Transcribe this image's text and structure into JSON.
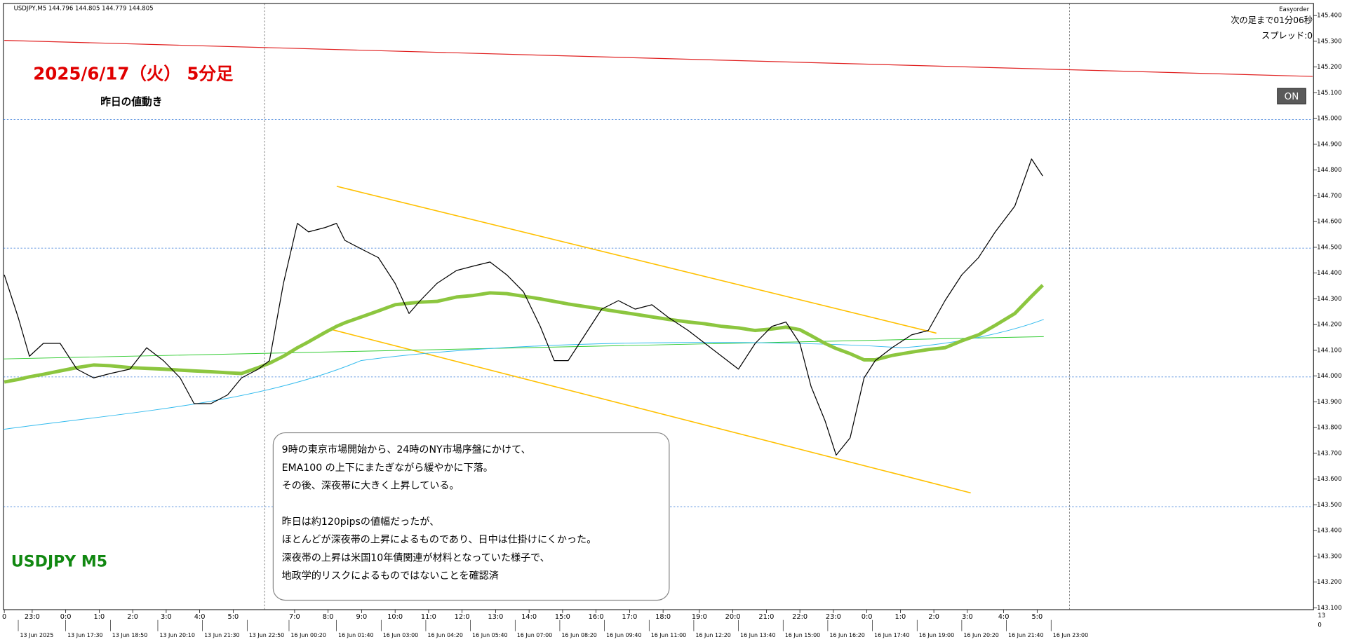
{
  "header": {
    "symbol_info": "USDJPY,M5  144.796 144.805 144.779 144.805",
    "tool_name": "Easyorder",
    "next_bar": "次の足まで01分06秒",
    "spread": "スプレッド:0",
    "toggle": "ON",
    "corner_top": "13",
    "corner_bottom": "0"
  },
  "chart_data": {
    "type": "line",
    "title": "2025/6/17（火） 5分足",
    "subtitle": "昨日の値動き",
    "symbol_label": "USDJPY M5",
    "annotation": [
      "9時の東京市場開始から、24時のNY市場序盤にかけて、",
      "EMA100 の上下にまたぎながら緩やかに下落。",
      "その後、深夜帯に大きく上昇している。",
      "昨日は約120pipsの値幅だったが、",
      "ほとんどが深夜帯の上昇によるものであり、日中は仕掛けにくかった。",
      "深夜帯の上昇は米国10年債関連が材料となっていた様子で、",
      "地政学的リスクによるものではないことを確認済"
    ],
    "x": [
      0,
      5,
      9,
      14,
      20,
      26,
      32,
      38,
      45,
      51,
      57,
      63,
      68,
      74,
      80,
      85,
      91,
      95,
      100,
      105,
      109,
      115,
      119,
      122,
      128,
      134,
      140,
      145,
      149,
      155,
      162,
      168,
      174,
      180,
      186,
      192,
      197,
      202,
      208,
      214,
      220,
      226,
      232,
      238,
      245,
      251,
      257,
      263,
      269,
      275,
      280,
      285,
      289,
      294,
      298,
      303,
      308,
      312,
      318,
      325,
      331,
      337,
      343,
      349,
      355,
      362,
      368,
      372
    ],
    "series": [
      {
        "name": "USDJPY",
        "color": "#000000",
        "width": 1,
        "values": [
          144.393,
          144.227,
          144.077,
          144.127,
          144.127,
          144.027,
          143.993,
          144.01,
          144.027,
          144.11,
          144.06,
          143.993,
          143.893,
          143.893,
          143.927,
          143.993,
          144.027,
          144.06,
          144.36,
          144.593,
          144.56,
          144.577,
          144.593,
          144.527,
          144.493,
          144.46,
          144.36,
          144.243,
          144.293,
          144.36,
          144.41,
          144.427,
          144.443,
          144.393,
          144.327,
          144.193,
          144.06,
          144.06,
          144.16,
          144.26,
          144.293,
          144.26,
          144.277,
          144.227,
          144.177,
          144.127,
          144.077,
          144.027,
          144.127,
          144.193,
          144.21,
          144.127,
          143.96,
          143.827,
          143.693,
          143.76,
          143.993,
          144.06,
          144.11,
          144.16,
          144.177,
          144.293,
          144.393,
          144.46,
          144.56,
          144.66,
          144.843,
          144.777
        ]
      },
      {
        "name": "EMA100",
        "color": "#8cc63f",
        "width": 4,
        "values": [
          143.977,
          143.987,
          143.997,
          144.007,
          144.02,
          144.033,
          144.043,
          144.04,
          144.033,
          144.03,
          144.027,
          144.023,
          144.02,
          144.017,
          144.013,
          144.01,
          144.033,
          144.05,
          144.077,
          144.11,
          144.133,
          144.17,
          144.193,
          144.207,
          144.23,
          144.253,
          144.277,
          144.283,
          144.287,
          144.29,
          144.307,
          144.313,
          144.323,
          144.32,
          144.31,
          144.3,
          144.29,
          144.28,
          144.27,
          144.26,
          144.25,
          144.24,
          144.23,
          144.22,
          144.21,
          144.203,
          144.193,
          144.187,
          144.177,
          144.183,
          144.19,
          144.18,
          144.157,
          144.127,
          144.107,
          144.087,
          144.063,
          144.063,
          144.08,
          144.093,
          144.103,
          144.11,
          144.137,
          144.16,
          144.197,
          144.243,
          144.31,
          144.353
        ]
      }
    ],
    "xlim": [
      0,
      469
    ],
    "ylim": [
      143.093,
      145.447
    ],
    "yticks": [
      {
        "value": 145.4,
        "label": "145.400"
      },
      {
        "value": 145.3,
        "label": "145.300"
      },
      {
        "value": 145.2,
        "label": "145.200"
      },
      {
        "value": 145.1,
        "label": "145.100"
      },
      {
        "value": 145.0,
        "label": "145.000"
      },
      {
        "value": 144.9,
        "label": "144.900"
      },
      {
        "value": 144.8,
        "label": "144.800"
      },
      {
        "value": 144.7,
        "label": "144.700"
      },
      {
        "value": 144.6,
        "label": "144.600"
      },
      {
        "value": 144.5,
        "label": "144.500"
      },
      {
        "value": 144.4,
        "label": "144.400"
      },
      {
        "value": 144.3,
        "label": "144.300"
      },
      {
        "value": 144.2,
        "label": "144.200"
      },
      {
        "value": 144.1,
        "label": "144.100"
      },
      {
        "value": 144.0,
        "label": "144.000"
      },
      {
        "value": 143.9,
        "label": "143.900"
      },
      {
        "value": 143.8,
        "label": "143.800"
      },
      {
        "value": 143.7,
        "label": "143.700"
      },
      {
        "value": 143.6,
        "label": "143.600"
      },
      {
        "value": 143.5,
        "label": "143.500"
      },
      {
        "value": 143.4,
        "label": "143.400"
      },
      {
        "value": 143.3,
        "label": "143.300"
      },
      {
        "value": 143.2,
        "label": "143.200"
      },
      {
        "value": 143.1,
        "label": "143.100"
      }
    ],
    "xticks": [
      {
        "value": 0,
        "label": "0"
      },
      {
        "value": 10,
        "label": "23:0"
      },
      {
        "value": 22,
        "label": "0:0"
      },
      {
        "value": 34,
        "label": "1:0"
      },
      {
        "value": 46,
        "label": "2:0"
      },
      {
        "value": 58,
        "label": "3:0"
      },
      {
        "value": 70,
        "label": "4:0"
      },
      {
        "value": 82,
        "label": "5:0"
      },
      {
        "value": 104,
        "label": "7:0"
      },
      {
        "value": 116,
        "label": "8:0"
      },
      {
        "value": 128,
        "label": "9:0"
      },
      {
        "value": 140,
        "label": "10:0"
      },
      {
        "value": 152,
        "label": "11:0"
      },
      {
        "value": 164,
        "label": "12:0"
      },
      {
        "value": 176,
        "label": "13:0"
      },
      {
        "value": 188,
        "label": "14:0"
      },
      {
        "value": 200,
        "label": "15:0"
      },
      {
        "value": 212,
        "label": "16:0"
      },
      {
        "value": 224,
        "label": "17:0"
      },
      {
        "value": 236,
        "label": "18:0"
      },
      {
        "value": 249,
        "label": "19:0"
      },
      {
        "value": 261,
        "label": "20:0"
      },
      {
        "value": 273,
        "label": "21:0"
      },
      {
        "value": 285,
        "label": "22:0"
      },
      {
        "value": 297,
        "label": "23:0"
      },
      {
        "value": 309,
        "label": "0:0"
      },
      {
        "value": 321,
        "label": "1:0"
      },
      {
        "value": 333,
        "label": "2:0"
      },
      {
        "value": 345,
        "label": "3:0"
      },
      {
        "value": 358,
        "label": "4:0"
      },
      {
        "value": 370,
        "label": "5:0"
      }
    ],
    "date_ticks": [
      {
        "value": 5,
        "label": "13 Jun 2025"
      },
      {
        "value": 22,
        "label": "13 Jun 17:30"
      },
      {
        "value": 38,
        "label": "13 Jun 18:50"
      },
      {
        "value": 55,
        "label": "13 Jun 20:10"
      },
      {
        "value": 71,
        "label": "13 Jun 21:30"
      },
      {
        "value": 87,
        "label": "13 Jun 22:50"
      },
      {
        "value": 102,
        "label": "16 Jun 00:20"
      },
      {
        "value": 119,
        "label": "16 Jun 01:40"
      },
      {
        "value": 135,
        "label": "16 Jun 03:00"
      },
      {
        "value": 151,
        "label": "16 Jun 04:20"
      },
      {
        "value": 167,
        "label": "16 Jun 05:40"
      },
      {
        "value": 183,
        "label": "16 Jun 07:00"
      },
      {
        "value": 199,
        "label": "16 Jun 08:20"
      },
      {
        "value": 215,
        "label": "16 Jun 09:40"
      },
      {
        "value": 231,
        "label": "16 Jun 11:00"
      },
      {
        "value": 247,
        "label": "16 Jun 12:20"
      },
      {
        "value": 263,
        "label": "16 Jun 13:40"
      },
      {
        "value": 279,
        "label": "16 Jun 15:00"
      },
      {
        "value": 295,
        "label": "16 Jun 16:20"
      },
      {
        "value": 311,
        "label": "16 Jun 17:40"
      },
      {
        "value": 327,
        "label": "16 Jun 19:00"
      },
      {
        "value": 343,
        "label": "16 Jun 20:20"
      },
      {
        "value": 359,
        "label": "16 Jun 21:40"
      },
      {
        "value": 375,
        "label": "16 Jun 23:00"
      }
    ]
  }
}
